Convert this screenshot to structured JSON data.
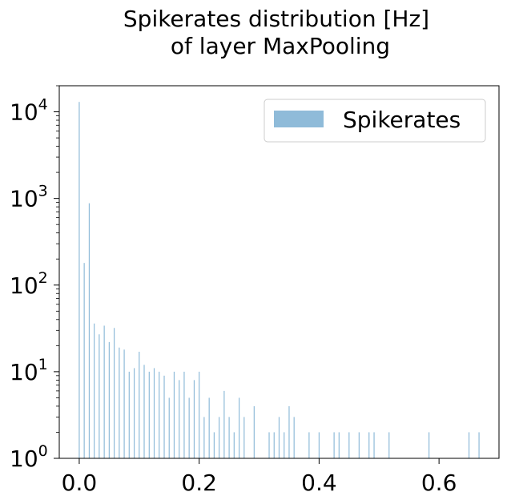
{
  "chart_data": {
    "type": "bar",
    "title_line1": "Spikerates distribution [Hz]",
    "title_line2": "of layer MaxPooling",
    "xlabel": "",
    "ylabel": "",
    "yscale": "log",
    "xlim": [
      -0.0333,
      0.7
    ],
    "ylim": [
      1,
      20000
    ],
    "x_ticks": [
      0.0,
      0.2,
      0.4,
      0.6
    ],
    "x_tick_labels": [
      "0.0",
      "0.2",
      "0.4",
      "0.6"
    ],
    "y_ticks": [
      1,
      10,
      100,
      1000,
      10000
    ],
    "y_tick_labels": [
      {
        "base": "10",
        "exp": "0"
      },
      {
        "base": "10",
        "exp": "1"
      },
      {
        "base": "10",
        "exp": "2"
      },
      {
        "base": "10",
        "exp": "3"
      },
      {
        "base": "10",
        "exp": "4"
      }
    ],
    "grid": false,
    "legend_position": "upper-right",
    "bar_color": "#1f77b4",
    "bar_alpha": 0.5,
    "series": [
      {
        "name": "Spikerates",
        "x": [
          0.0,
          0.0083,
          0.0167,
          0.025,
          0.0333,
          0.0417,
          0.05,
          0.0583,
          0.0667,
          0.075,
          0.0833,
          0.0917,
          0.1,
          0.1083,
          0.1167,
          0.125,
          0.1333,
          0.1417,
          0.15,
          0.1583,
          0.1667,
          0.175,
          0.1833,
          0.1917,
          0.2,
          0.2083,
          0.2167,
          0.225,
          0.2333,
          0.2417,
          0.25,
          0.2583,
          0.2667,
          0.275,
          0.2917,
          0.3167,
          0.325,
          0.3333,
          0.3417,
          0.35,
          0.3583,
          0.3833,
          0.4,
          0.425,
          0.4333,
          0.45,
          0.4667,
          0.4833,
          0.4917,
          0.5167,
          0.5833,
          0.65,
          0.6667
        ],
        "values": [
          13000,
          180,
          880,
          36,
          27,
          34,
          22,
          32,
          19,
          18,
          10,
          11,
          17,
          12,
          10,
          11,
          10,
          9,
          5,
          10,
          8,
          10,
          5,
          8,
          10,
          3,
          5,
          2,
          3,
          6,
          3,
          2,
          5,
          3,
          4,
          2,
          2,
          3,
          2,
          4,
          3,
          2,
          2,
          2,
          2,
          2,
          2,
          2,
          2,
          2,
          2,
          2,
          2
        ]
      }
    ]
  }
}
